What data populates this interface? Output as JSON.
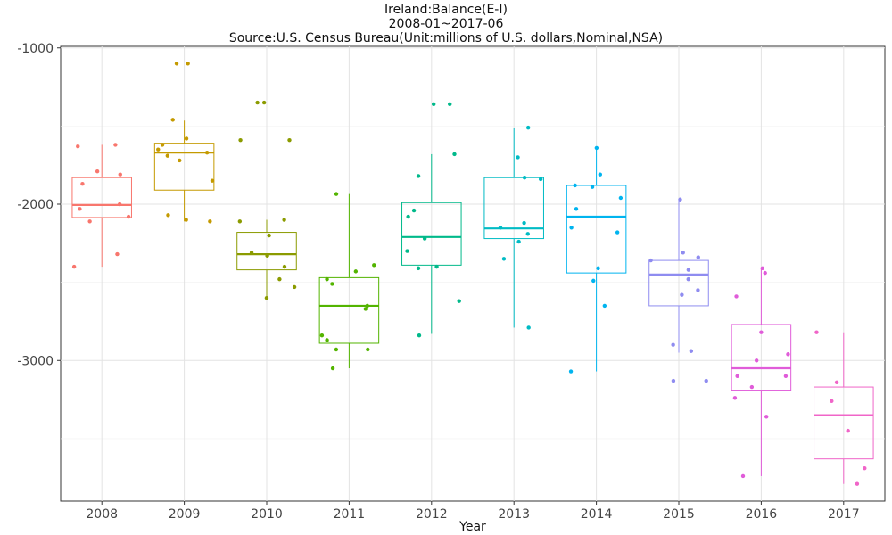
{
  "chart_data": {
    "type": "box",
    "title": "Ireland:Balance(E-I)",
    "subtitle": "2008-01~2017-06",
    "subtitle2": "Source:U.S. Census Bureau(Unit:millions of U.S. dollars,Nominal,NSA)",
    "xlabel": "Year",
    "ylabel": "",
    "ylim": [
      -3900,
      -990
    ],
    "yticks": [
      -1000,
      -2000,
      -3000
    ],
    "grid": true,
    "legend": "none",
    "categories": [
      "2008",
      "2009",
      "2010",
      "2011",
      "2012",
      "2013",
      "2014",
      "2015",
      "2016",
      "2017"
    ],
    "colors": [
      "#F8766D",
      "#CD9600",
      "#7CAE00",
      "#0CB702",
      "#00BE67",
      "#00BFC4",
      "#00A9FF",
      "#8494FF",
      "#E68613",
      "#FF61CC"
    ],
    "boxes": [
      {
        "year": "2008",
        "color": "#F8766D",
        "whisker_low": -2400,
        "q1": -2085,
        "median": -2005,
        "q3": -1830,
        "whisker_high": -1620,
        "points": [
          -1620,
          -1630,
          -1790,
          -1810,
          -1870,
          -2000,
          -2030,
          -2080,
          -2110,
          -2320,
          -2400
        ]
      },
      {
        "year": "2009",
        "color": "#C49A00",
        "whisker_low": -2110,
        "q1": -1910,
        "median": -1670,
        "q3": -1610,
        "whisker_high": -1465,
        "points": [
          -1100,
          -1100,
          -1460,
          -1580,
          -1620,
          -1650,
          -1670,
          -1690,
          -1720,
          -1850,
          -2070,
          -2100,
          -2110
        ]
      },
      {
        "year": "2010",
        "color": "#8B9B00",
        "whisker_low": -2600,
        "q1": -2420,
        "median": -2320,
        "q3": -2180,
        "whisker_high": -2100,
        "points": [
          -1350,
          -1350,
          -1590,
          -1590,
          -2100,
          -2110,
          -2200,
          -2310,
          -2330,
          -2400,
          -2480,
          -2530,
          -2600
        ]
      },
      {
        "year": "2011",
        "color": "#53B400",
        "whisker_low": -3050,
        "q1": -2890,
        "median": -2650,
        "q3": -2470,
        "whisker_high": -1935,
        "points": [
          -1935,
          -2390,
          -2430,
          -2480,
          -2510,
          -2650,
          -2670,
          -2840,
          -2870,
          -2930,
          -2930,
          -3050
        ]
      },
      {
        "year": "2012",
        "color": "#00B98A",
        "whisker_low": -2830,
        "q1": -2390,
        "median": -2210,
        "q3": -1990,
        "whisker_high": -1680,
        "points": [
          -1360,
          -1360,
          -1680,
          -1820,
          -2040,
          -2080,
          -2220,
          -2300,
          -2400,
          -2410,
          -2620,
          -2840
        ]
      },
      {
        "year": "2013",
        "color": "#00BBC4",
        "whisker_low": -2790,
        "q1": -2220,
        "median": -2155,
        "q3": -1830,
        "whisker_high": -1510,
        "points": [
          -1510,
          -1700,
          -1830,
          -1840,
          -2120,
          -2150,
          -2190,
          -2240,
          -2350,
          -2790
        ]
      },
      {
        "year": "2014",
        "color": "#00B4EF",
        "whisker_low": -3070,
        "q1": -2440,
        "median": -2080,
        "q3": -1880,
        "whisker_high": -1640,
        "points": [
          -1640,
          -1810,
          -1880,
          -1890,
          -1960,
          -2030,
          -2150,
          -2180,
          -2410,
          -2490,
          -2650,
          -3070
        ]
      },
      {
        "year": "2015",
        "color": "#8F8CF0",
        "whisker_low": -2950,
        "q1": -2650,
        "median": -2450,
        "q3": -2360,
        "whisker_high": -1970,
        "points": [
          -1970,
          -2310,
          -2340,
          -2360,
          -2420,
          -2480,
          -2550,
          -2580,
          -2900,
          -2940,
          -3130,
          -3130
        ]
      },
      {
        "year": "2016",
        "color": "#E05CD9",
        "whisker_low": -3740,
        "q1": -3190,
        "median": -3050,
        "q3": -2770,
        "whisker_high": -2410,
        "points": [
          -2410,
          -2440,
          -2590,
          -2820,
          -2960,
          -3000,
          -3100,
          -3100,
          -3170,
          -3240,
          -3360,
          -3740
        ]
      },
      {
        "year": "2017",
        "color": "#F065C8",
        "whisker_low": -3790,
        "q1": -3630,
        "median": -3350,
        "q3": -3170,
        "whisker_high": -2820,
        "points": [
          -2820,
          -3140,
          -3260,
          -3450,
          -3690,
          -3790
        ]
      }
    ]
  }
}
